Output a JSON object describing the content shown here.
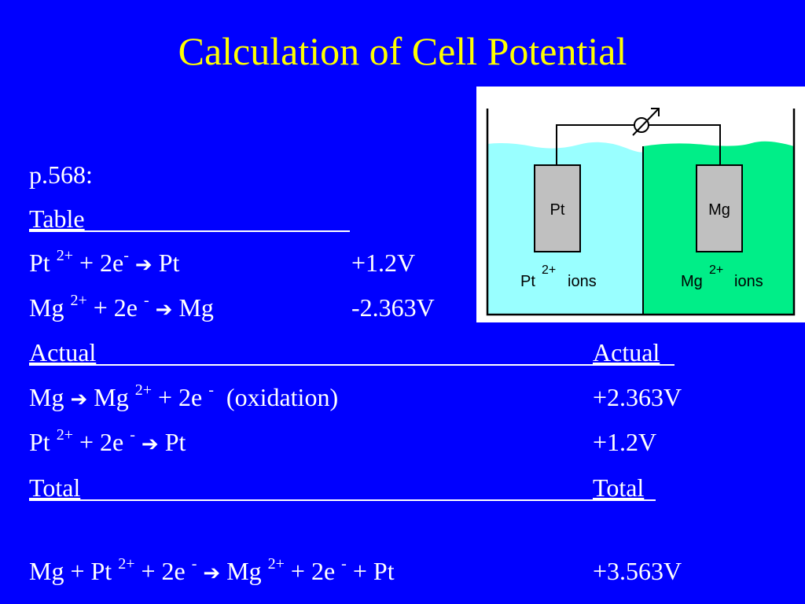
{
  "title": "Calculation of Cell Potential",
  "page_ref": "p.568:",
  "table_heading": "Table",
  "table_rows": [
    {
      "lhs": "Pt",
      "sup1": "2+",
      "mid": "+ 2e",
      "sup2": "-",
      "product": "Pt",
      "value": "+1.2V"
    },
    {
      "lhs": "Mg",
      "sup1": "2+",
      "mid": "+ 2e",
      "sup2": "-",
      "product": "Mg",
      "value": "-2.363V"
    }
  ],
  "actual_heading": "Actual",
  "actual_value_heading": "Actual",
  "actual_rows": [
    {
      "lhs": "Mg",
      "product": "Mg",
      "sup1": "2+",
      "mid": "+ 2e",
      "sup2": "-",
      "note": "(oxidation)",
      "value": "+2.363V"
    },
    {
      "lhs": "Pt",
      "sup1": "2+",
      "mid": "+ 2e",
      "sup2": "-",
      "product": "Pt",
      "value": "+1.2V"
    }
  ],
  "total_heading": "Total",
  "total_value_heading": "Total",
  "total_equation": {
    "part1": "Mg + Pt",
    "sup1": "2+",
    "part2": "+ 2e",
    "sup2": "-",
    "part3": "Mg",
    "sup3": "2+",
    "part4": "+ 2e",
    "sup4": "-",
    "part5": "+ Pt",
    "value": "+3.563V"
  },
  "diagram": {
    "left_electrode": "Pt",
    "right_electrode": "Mg",
    "left_ion_label": "Pt",
    "left_ion_charge": "2+",
    "left_ion_suffix": "ions",
    "right_ion_label": "Mg",
    "right_ion_charge": "2+",
    "right_ion_suffix": "ions",
    "left_solution_color": "#99ffff",
    "right_solution_color": "#00ee88",
    "electrode_color": "#c0c0c0"
  },
  "colors": {
    "background": "#0000ff",
    "title": "#ffff00",
    "text": "#ffffff"
  }
}
